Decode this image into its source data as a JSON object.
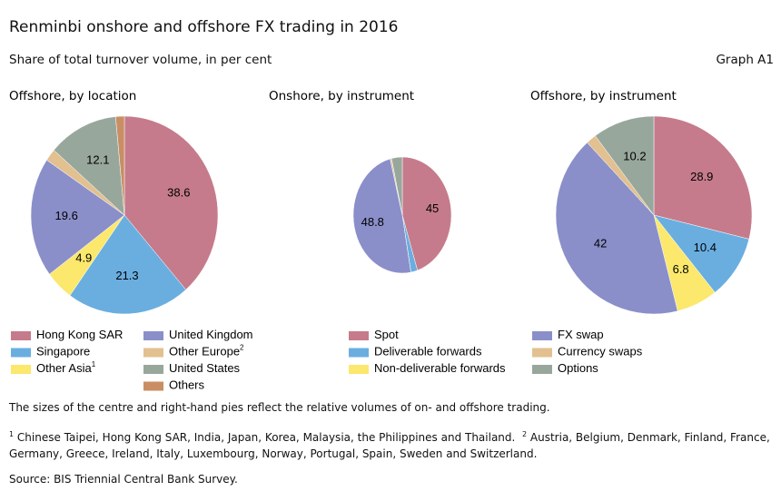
{
  "title": "Renminbi onshore and offshore FX trading in 2016",
  "subtitle": "Share of total turnover volume, in per cent",
  "graph_label": "Graph A1",
  "chart_data": [
    {
      "type": "pie",
      "title": "Offshore, by location",
      "categories": [
        "Hong Kong SAR",
        "Singapore",
        "Other Asia",
        "United Kingdom",
        "Other Europe",
        "United States",
        "Others"
      ],
      "footnote_marks": [
        null,
        null,
        "1",
        null,
        "2",
        null,
        null
      ],
      "values": [
        38.6,
        21.3,
        4.9,
        19.6,
        2.0,
        12.1,
        1.5
      ],
      "colors": [
        "#c57b8b",
        "#6aaee0",
        "#fbe86c",
        "#8a8fca",
        "#e2c08f",
        "#98a79c",
        "#c98e63"
      ]
    },
    {
      "type": "pie",
      "title": "Onshore, by instrument",
      "values": [
        45,
        2.2,
        0,
        48.8,
        0.5,
        3.5
      ]
    },
    {
      "type": "pie",
      "title": "Offshore, by instrument",
      "values": [
        28.9,
        10.4,
        6.8,
        42,
        1.7,
        10.2
      ]
    }
  ],
  "instrument_legend": {
    "categories": [
      "Spot",
      "Deliverable forwards",
      "Non-deliverable forwards",
      "FX swap",
      "Currency swaps",
      "Options"
    ],
    "colors": [
      "#c57b8b",
      "#6aaee0",
      "#fbe86c",
      "#8a8fca",
      "#e2c08f",
      "#98a79c"
    ]
  },
  "note": "The sizes of the centre and right-hand pies reflect the relative volumes of on- and offshore trading.",
  "footnotes": [
    {
      "mark": "1",
      "text": "Chinese Taipei, Hong Kong SAR, India, Japan, Korea, Malaysia, the Philippines and Thailand."
    },
    {
      "mark": "2",
      "text": "Austria, Belgium, Denmark, Finland, France, Germany, Greece, Ireland, Italy, Luxembourg, Norway, Portugal, Spain, Sweden and Switzerland."
    }
  ],
  "source": "Source: BIS Triennial Central Bank Survey."
}
